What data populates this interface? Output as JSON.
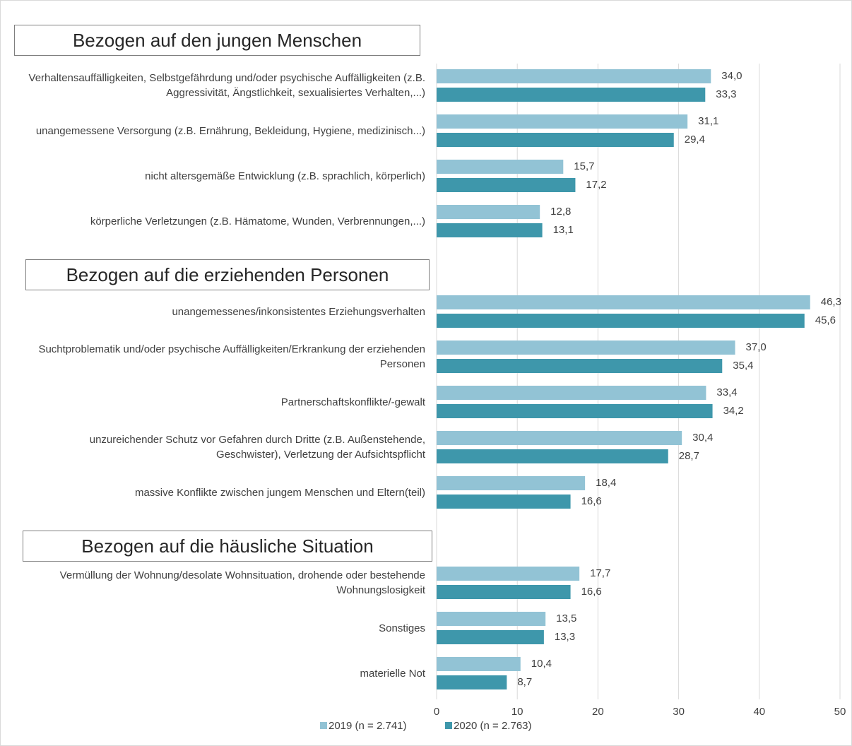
{
  "chart_data": {
    "type": "bar",
    "orientation": "horizontal",
    "sections": [
      {
        "title": "Bezogen auf den jungen Menschen",
        "categories": [
          "Verhaltensauffälligkeiten, Selbstgefährdung und/oder psychische Auffälligkeiten (z.B. Aggressivität, Ängstlichkeit, sexualisiertes Verhalten,...)",
          "unangemessene Versorgung (z.B. Ernährung, Bekleidung, Hygiene, medizinisch...)",
          "nicht altersgemäße Entwicklung (z.B. sprachlich, körperlich)",
          "körperliche Verletzungen (z.B. Hämatome, Wunden, Verbrennungen,...)"
        ]
      },
      {
        "title": "Bezogen auf die erziehenden Personen",
        "categories": [
          "unangemessenes/inkonsistentes Erziehungsverhalten",
          "Suchtproblematik und/oder psychische Auffälligkeiten/Erkrankung der erziehenden Personen",
          "Partnerschaftskonflikte/-gewalt",
          "unzureichender Schutz vor Gefahren durch Dritte (z.B. Außenstehende, Geschwister), Verletzung der Aufsichtspflicht",
          "massive Konflikte zwischen jungem Menschen und Eltern(teil)"
        ]
      },
      {
        "title": "Bezogen auf die häusliche Situation",
        "categories": [
          "Vermüllung der Wohnung/desolate Wohnsituation, drohende oder bestehende Wohnungslosigkeit",
          "Sonstiges",
          "materielle Not"
        ]
      }
    ],
    "series": [
      {
        "name": "2019 (n = 2.741)",
        "color": "#92c3d5",
        "values": [
          34.0,
          31.1,
          15.7,
          12.8,
          46.3,
          37.0,
          33.4,
          30.4,
          18.4,
          17.7,
          13.5,
          10.4
        ],
        "value_labels": [
          "34,0",
          "31,1",
          "15,7",
          "12,8",
          "46,3",
          "37,0",
          "33,4",
          "30,4",
          "18,4",
          "17,7",
          "13,5",
          "10,4"
        ]
      },
      {
        "name": "2020 (n = 2.763)",
        "color": "#3e97ab",
        "values": [
          33.3,
          29.4,
          17.2,
          13.1,
          45.6,
          35.4,
          34.2,
          28.7,
          16.6,
          16.6,
          13.3,
          8.7
        ],
        "value_labels": [
          "33,3",
          "29,4",
          "17,2",
          "13,1",
          "45,6",
          "35,4",
          "34,2",
          "28,7",
          "16,6",
          "16,6",
          "13,3",
          "8,7"
        ]
      }
    ],
    "xlim": [
      0,
      50
    ],
    "xticks": [
      0,
      10,
      20,
      30,
      40,
      50
    ],
    "grid": true,
    "legend": "bottom"
  }
}
